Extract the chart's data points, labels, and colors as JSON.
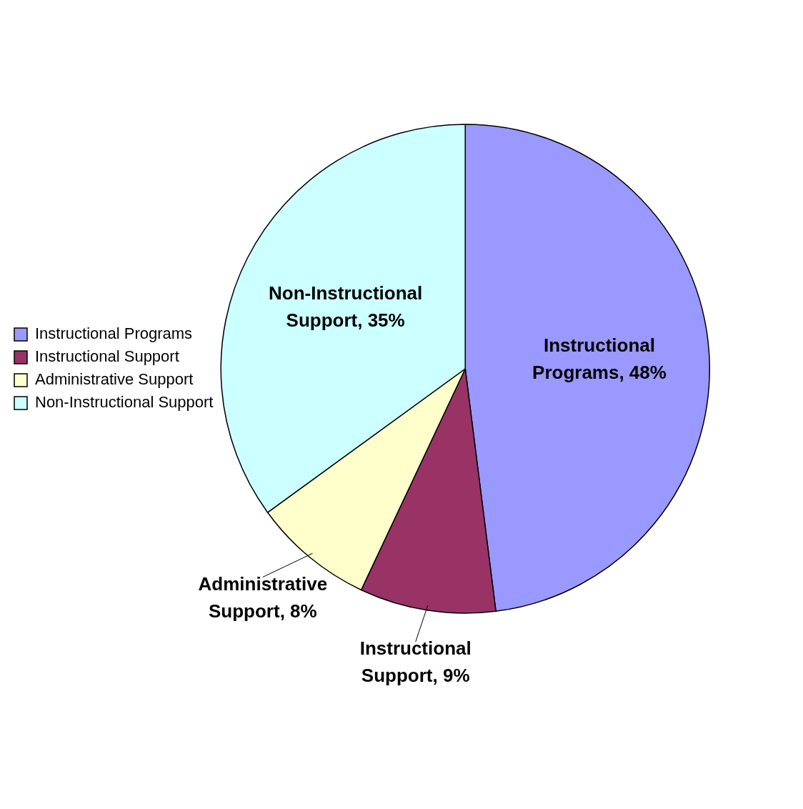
{
  "chart_data": {
    "type": "pie",
    "categories": [
      "Instructional Programs",
      "Instructional Support",
      "Administrative Support",
      "Non-Instructional Support"
    ],
    "values": [
      48,
      9,
      8,
      35
    ],
    "colors": [
      "#9999ff",
      "#993366",
      "#ffffcc",
      "#ccffff"
    ],
    "value_labels": [
      "Instructional Programs, 48%",
      "Instructional Support, 9%",
      "Administrative Support, 8%",
      "Non-Instructional Support, 35%"
    ],
    "legend": "left"
  }
}
